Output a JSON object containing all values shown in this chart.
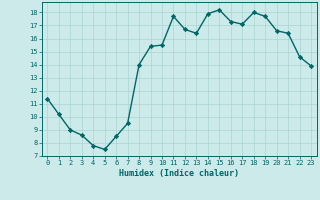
{
  "x": [
    0,
    1,
    2,
    3,
    4,
    5,
    6,
    7,
    8,
    9,
    10,
    11,
    12,
    13,
    14,
    15,
    16,
    17,
    18,
    19,
    20,
    21,
    22,
    23
  ],
  "y": [
    11.4,
    10.2,
    9.0,
    8.6,
    7.8,
    7.5,
    8.5,
    9.5,
    14.0,
    15.4,
    15.5,
    17.7,
    16.7,
    16.4,
    17.9,
    18.2,
    17.3,
    17.1,
    18.0,
    17.7,
    16.6,
    16.4,
    14.6,
    13.9
  ],
  "line_color": "#006666",
  "marker": "D",
  "markersize": 2.2,
  "linewidth": 1.0,
  "xlabel": "Humidex (Indice chaleur)",
  "xlim": [
    -0.5,
    23.5
  ],
  "ylim": [
    7,
    18.8
  ],
  "yticks": [
    7,
    8,
    9,
    10,
    11,
    12,
    13,
    14,
    15,
    16,
    17,
    18
  ],
  "xtick_labels": [
    "0",
    "1",
    "2",
    "3",
    "4",
    "5",
    "6",
    "7",
    "8",
    "9",
    "10",
    "11",
    "12",
    "13",
    "14",
    "15",
    "16",
    "17",
    "18",
    "19",
    "20",
    "21",
    "22",
    "23"
  ],
  "bg_color": "#cceaea",
  "grid_color": "#aad4d4",
  "tick_color": "#006666",
  "label_color": "#006666",
  "spine_color": "#006666"
}
